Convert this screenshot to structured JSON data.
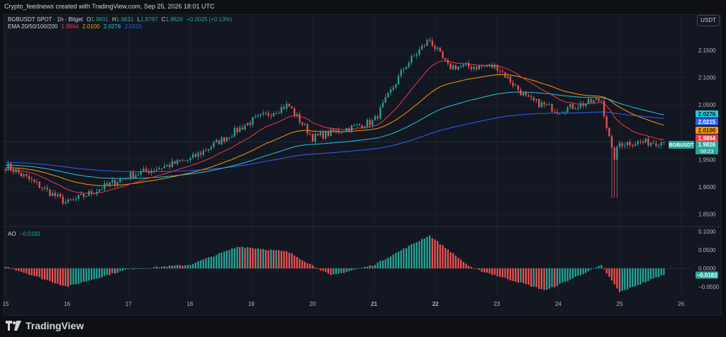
{
  "credit": "Crypto_feednews created with TradingView.com, Sep 25, 2026 18:01 UTC",
  "currency_button": "USDT",
  "brand": "TradingView",
  "legend": {
    "symbol_line": "BGBUSDT SPOT · 1h · Bitget",
    "open_label": "O",
    "open": "1.9801",
    "high_label": "H",
    "high": "1.9831",
    "low_label": "L",
    "low": "1.9797",
    "close_label": "C",
    "close": "1.9826",
    "change": "+0.0025 (+0.13%)",
    "ema_label": "EMA 20/50/100/200",
    "ema20": "1.9864",
    "ema50": "2.0100",
    "ema100": "2.0276",
    "ema200": "2.0215"
  },
  "ao": {
    "label": "AO",
    "value": "−0.0182"
  },
  "colors": {
    "up": "#26a69a",
    "down": "#ef5350",
    "ema20": "#f23645",
    "ema50": "#ff9800",
    "ema100": "#26c6da",
    "ema200": "#2962ff"
  },
  "badges": {
    "ema100": "2.0276",
    "ema200": "2.0215",
    "ema50": "2.0100",
    "ema20": "1.9864",
    "symbol": "BGBUSDT",
    "price": "1.9826",
    "countdown": "58:23",
    "ao": "−0.0182"
  },
  "chart_data": [
    {
      "type": "candlestick",
      "title": "BGBUSDT SPOT · 1h · Bitget",
      "x_ticks": [
        "15",
        "16",
        "17",
        "18",
        "19",
        "20",
        "21",
        "22",
        "23",
        "24",
        "25",
        "26"
      ],
      "y_ticks": [
        "2.1500",
        "2.1000",
        "2.0500",
        "1.9500",
        "1.9000",
        "1.8500"
      ],
      "ylim": [
        1.83,
        2.19
      ],
      "key_points": [
        {
          "x": "15",
          "y": 1.94
        },
        {
          "x": "16",
          "y": 1.87
        },
        {
          "x": "17",
          "y": 1.92
        },
        {
          "x": "18",
          "y": 1.95
        },
        {
          "x": "19",
          "y": 2.02
        },
        {
          "x": "19.6",
          "y": 2.05
        },
        {
          "x": "20",
          "y": 1.99
        },
        {
          "x": "21",
          "y": 2.02
        },
        {
          "x": "21.5",
          "y": 2.12
        },
        {
          "x": "21.9",
          "y": 2.17
        },
        {
          "x": "22.2",
          "y": 2.12
        },
        {
          "x": "23",
          "y": 2.12
        },
        {
          "x": "23.5",
          "y": 2.06
        },
        {
          "x": "24",
          "y": 2.04
        },
        {
          "x": "24.7",
          "y": 2.06
        },
        {
          "x": "24.9",
          "y": 1.95
        },
        {
          "x": "25",
          "y": 1.98
        },
        {
          "x": "25.7",
          "y": 1.9826
        }
      ],
      "grid": true
    },
    {
      "type": "bar",
      "title": "AO",
      "y_ticks": [
        "0.1000",
        "0.0500",
        "0.0000",
        "−0.0500"
      ],
      "ylim": [
        -0.075,
        0.11
      ],
      "key_points": [
        {
          "x": "15",
          "y": 0.005
        },
        {
          "x": "16",
          "y": -0.05
        },
        {
          "x": "17",
          "y": -0.002
        },
        {
          "x": "18",
          "y": 0.01
        },
        {
          "x": "18.8",
          "y": 0.06
        },
        {
          "x": "19.6",
          "y": 0.045
        },
        {
          "x": "20.3",
          "y": -0.02
        },
        {
          "x": "21",
          "y": 0.01
        },
        {
          "x": "21.9",
          "y": 0.09
        },
        {
          "x": "22.6",
          "y": 0.0
        },
        {
          "x": "23.8",
          "y": -0.06
        },
        {
          "x": "24.7",
          "y": 0.008
        },
        {
          "x": "25",
          "y": -0.065
        },
        {
          "x": "25.7",
          "y": -0.0182
        }
      ]
    }
  ]
}
